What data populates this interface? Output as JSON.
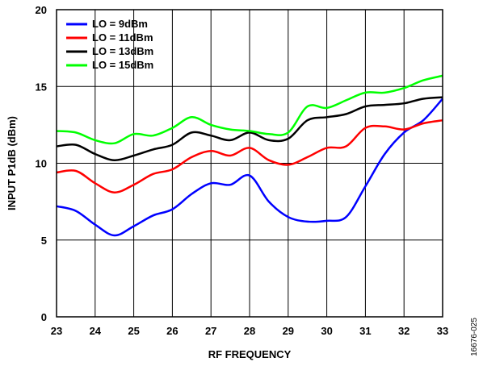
{
  "chart_data": {
    "type": "line",
    "xlabel": "RF FREQUENCY",
    "ylabel": "INPUT P1dB (dBm)",
    "xlim": [
      23,
      33
    ],
    "ylim": [
      0,
      20
    ],
    "x_ticks": [
      23,
      24,
      25,
      26,
      27,
      28,
      29,
      30,
      31,
      32,
      33
    ],
    "y_ticks": [
      0,
      5,
      10,
      15,
      20
    ],
    "grid": true,
    "legend_position": "top-left",
    "figure_id": "16676-025",
    "series": [
      {
        "name": "LO = 9dBm",
        "color": "#0000ff",
        "x": [
          23,
          23.5,
          24,
          24.5,
          25,
          25.5,
          26,
          26.5,
          27,
          27.5,
          28,
          28.5,
          29,
          29.5,
          30,
          30.5,
          31,
          31.5,
          32,
          32.5,
          33
        ],
        "y": [
          7.2,
          6.9,
          6.0,
          5.3,
          5.9,
          6.6,
          7.0,
          8.0,
          8.7,
          8.6,
          9.2,
          7.5,
          6.5,
          6.2,
          6.25,
          6.5,
          8.5,
          10.6,
          12.0,
          12.8,
          14.2
        ]
      },
      {
        "name": "LO = 11dBm",
        "color": "#ff0000",
        "x": [
          23,
          23.5,
          24,
          24.5,
          25,
          25.5,
          26,
          26.5,
          27,
          27.5,
          28,
          28.5,
          29,
          29.5,
          30,
          30.5,
          31,
          31.5,
          32,
          32.5,
          33
        ],
        "y": [
          9.4,
          9.5,
          8.7,
          8.1,
          8.6,
          9.3,
          9.6,
          10.4,
          10.8,
          10.5,
          11.0,
          10.2,
          9.9,
          10.4,
          11.0,
          11.1,
          12.3,
          12.4,
          12.2,
          12.6,
          12.8
        ]
      },
      {
        "name": "LO = 13dBm",
        "color": "#000000",
        "x": [
          23,
          23.5,
          24,
          24.5,
          25,
          25.5,
          26,
          26.5,
          27,
          27.5,
          28,
          28.5,
          29,
          29.5,
          30,
          30.5,
          31,
          31.5,
          32,
          32.5,
          33
        ],
        "y": [
          11.1,
          11.2,
          10.6,
          10.2,
          10.5,
          10.9,
          11.2,
          12.0,
          11.8,
          11.5,
          12.0,
          11.5,
          11.6,
          12.8,
          13.0,
          13.2,
          13.7,
          13.8,
          13.9,
          14.2,
          14.3
        ]
      },
      {
        "name": "LO = 15dBm",
        "color": "#00ff00",
        "x": [
          23,
          23.5,
          24,
          24.5,
          25,
          25.5,
          26,
          26.5,
          27,
          27.5,
          28,
          28.5,
          29,
          29.5,
          30,
          30.5,
          31,
          31.5,
          32,
          32.5,
          33
        ],
        "y": [
          12.1,
          12.0,
          11.5,
          11.3,
          11.9,
          11.8,
          12.3,
          13.0,
          12.5,
          12.2,
          12.1,
          11.9,
          12.0,
          13.7,
          13.6,
          14.1,
          14.6,
          14.6,
          14.9,
          15.4,
          15.7
        ]
      }
    ]
  }
}
